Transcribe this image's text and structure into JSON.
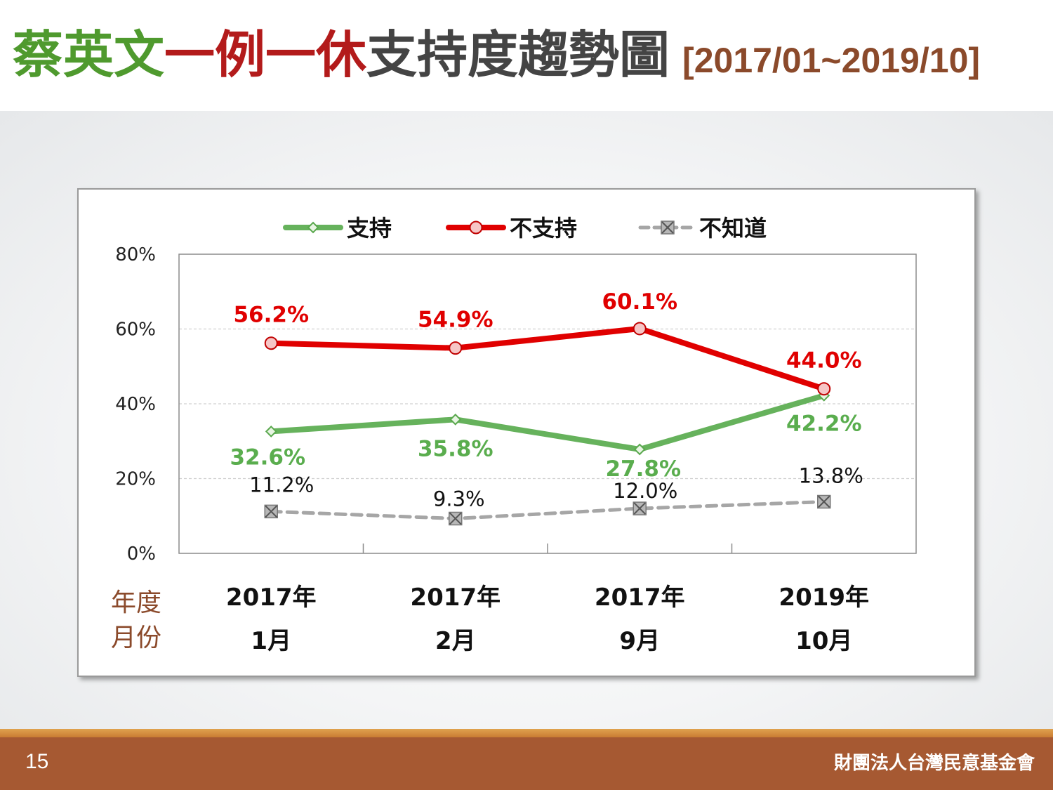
{
  "title": {
    "part1": "蔡英文",
    "part2": "一例一休",
    "part3": "支持度趨勢圖",
    "range": "[2017/01~2019/10]",
    "colors": {
      "part1": "#4f9a2e",
      "part2": "#b31b1b",
      "part3": "#444444"
    }
  },
  "chart_data": {
    "type": "line",
    "categories": [
      {
        "year": "2017年",
        "month": "1月"
      },
      {
        "year": "2017年",
        "month": "2月"
      },
      {
        "year": "2017年",
        "month": "9月"
      },
      {
        "year": "2019年",
        "month": "10月"
      }
    ],
    "series": [
      {
        "name": "支持",
        "values": [
          32.6,
          35.8,
          27.8,
          42.2
        ],
        "labels": [
          "32.6%",
          "35.8%",
          "27.8%",
          "42.2%"
        ],
        "color": "#66b25c",
        "marker": "diamond",
        "style": "solid"
      },
      {
        "name": "不支持",
        "values": [
          56.2,
          54.9,
          60.1,
          44.0
        ],
        "labels": [
          "56.2%",
          "54.9%",
          "60.1%",
          "44.0%"
        ],
        "color": "#e00000",
        "marker": "circle",
        "style": "solid"
      },
      {
        "name": "不知道",
        "values": [
          11.2,
          9.3,
          12.0,
          13.8
        ],
        "labels": [
          "11.2%",
          "9.3%",
          "12.0%",
          "13.8%"
        ],
        "color": "#a6a6a6",
        "marker": "x-square",
        "style": "dashed"
      }
    ],
    "ylim": [
      0,
      80
    ],
    "yticks": [
      0,
      20,
      40,
      60,
      80
    ],
    "ytick_labels": [
      "0%",
      "20%",
      "40%",
      "60%",
      "80%"
    ],
    "xlabel_lines": [
      "年度",
      "月份"
    ],
    "legend_position": "top",
    "grid": true
  },
  "footer": {
    "page": "15",
    "org": "財團法人台灣民意基金會"
  }
}
